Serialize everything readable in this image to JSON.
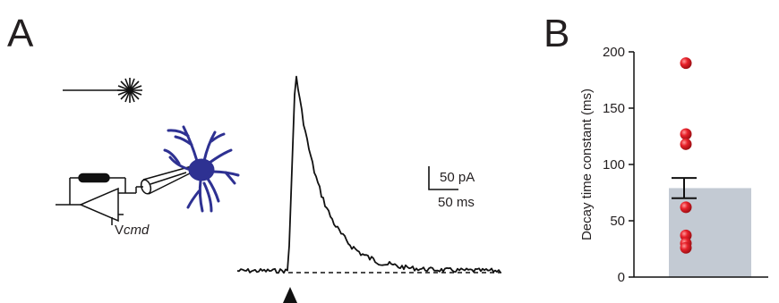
{
  "panels": {
    "a": {
      "label": "A"
    },
    "b": {
      "label": "B"
    }
  },
  "schematic": {
    "command_voltage": {
      "main": "V",
      "subscript": "cmd"
    },
    "laser_icon": "laser-flash-icon",
    "cell_icon": "astrocyte-cell-icon",
    "cell_color": "#2e3192"
  },
  "trace": {
    "scale_bar": {
      "current": "50 pA",
      "time": "50 ms"
    },
    "stimulus_marker": "triangle-up-icon"
  },
  "chart_data": {
    "type": "bar",
    "categories": [
      ""
    ],
    "values": [
      79
    ],
    "error": [
      9
    ],
    "points": [
      190,
      127,
      118,
      62,
      37,
      30,
      26
    ],
    "ylabel": "Decay time constant (ms)",
    "ylim": [
      0,
      200
    ],
    "yticks": [
      0,
      50,
      100,
      150,
      200
    ],
    "bar_color": "#c3cad3",
    "point_color": "#e8212a"
  }
}
